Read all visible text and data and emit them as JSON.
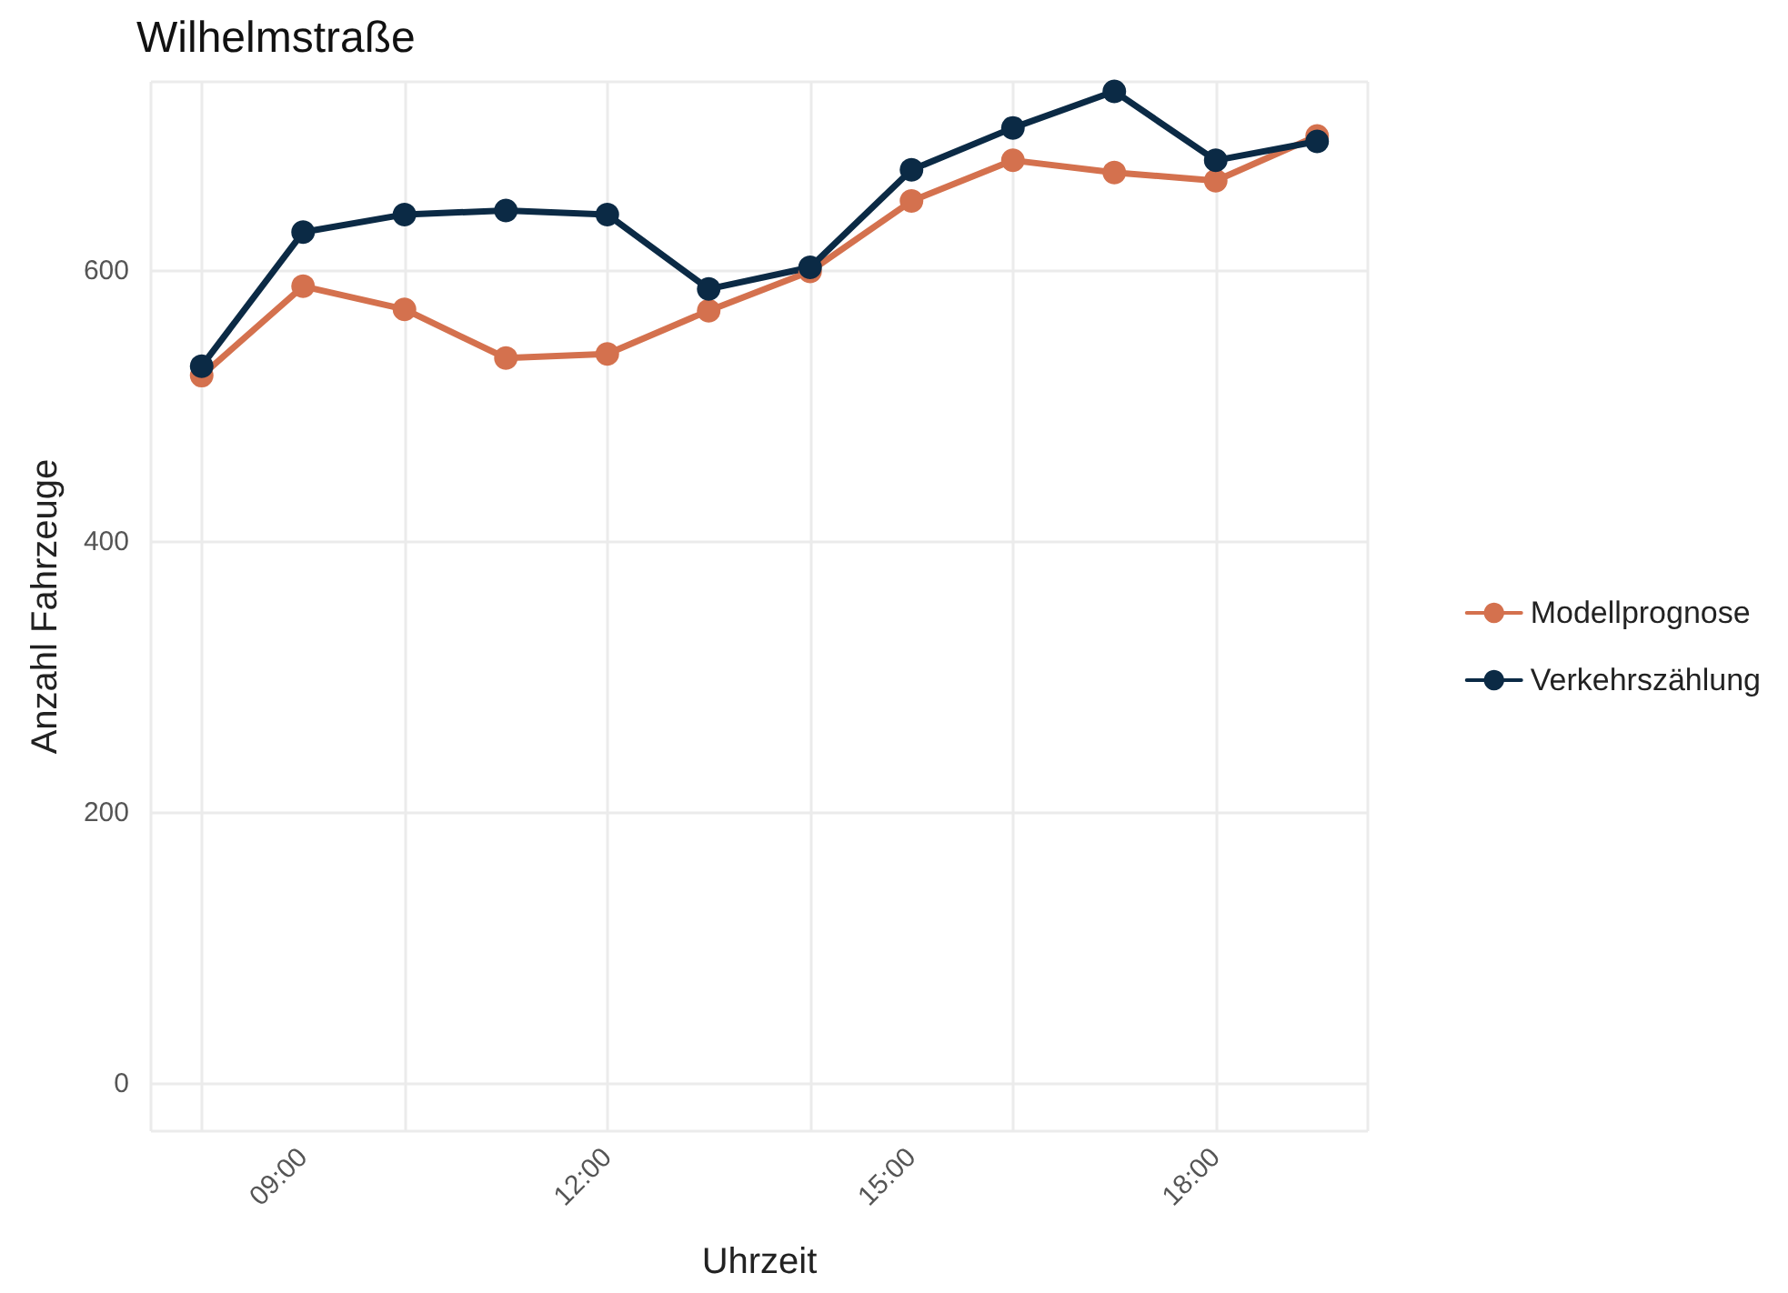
{
  "chart_data": {
    "type": "line",
    "title": "Wilhelmstraße",
    "xlabel": "Uhrzeit",
    "ylabel": "Anzahl Fahrzeuge",
    "x": [
      8,
      9,
      10,
      11,
      12,
      13,
      14,
      15,
      16,
      17,
      18,
      19
    ],
    "series": [
      {
        "name": "Modellprognose",
        "color": "#d4714e",
        "values": [
          523,
          589,
          572,
          536,
          539,
          571,
          600,
          652,
          682,
          673,
          667,
          700
        ]
      },
      {
        "name": "Verkehrszählung",
        "color": "#0b2a45",
        "values": [
          530,
          629,
          642,
          645,
          642,
          587,
          603,
          675,
          706,
          733,
          682,
          696
        ]
      }
    ],
    "xlim": [
      7.5,
      19.5
    ],
    "xticks": [
      {
        "value": 9,
        "label": "09:00"
      },
      {
        "value": 12,
        "label": "12:00"
      },
      {
        "value": 15,
        "label": "15:00"
      },
      {
        "value": 18,
        "label": "18:00"
      }
    ],
    "ylim": [
      -35,
      740
    ],
    "yticks": [
      0,
      200,
      400,
      600
    ],
    "grid": true,
    "legend": "right",
    "marker": "circle",
    "line_style": "solid"
  }
}
